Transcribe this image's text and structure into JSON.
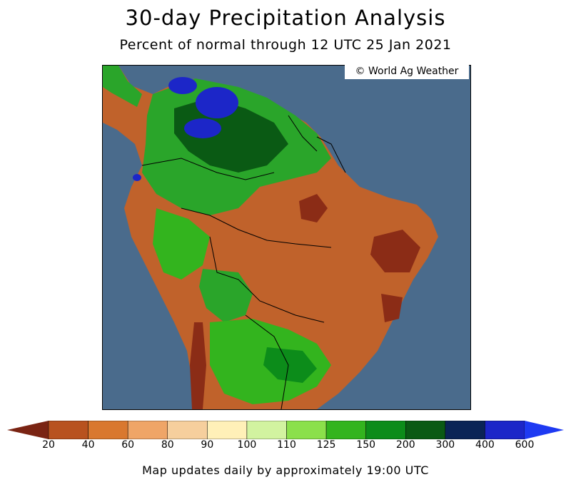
{
  "title": "30-day Precipitation Analysis",
  "subtitle": "Percent of normal through 12 UTC 25 Jan 2021",
  "credit": "© World Ag Weather",
  "footer": "Map updates daily by approximately 19:00 UTC",
  "legend": {
    "bins": [
      {
        "label": "20",
        "color": "#8b2c16"
      },
      {
        "label": "40",
        "color": "#b8521f"
      },
      {
        "label": "60",
        "color": "#d9782f"
      },
      {
        "label": "80",
        "color": "#efa567"
      },
      {
        "label": "90",
        "color": "#f6cf9d"
      },
      {
        "label": "100",
        "color": "#fff0b8"
      },
      {
        "label": "110",
        "color": "#d2f3a0"
      },
      {
        "label": "125",
        "color": "#8be04b"
      },
      {
        "label": "150",
        "color": "#33b41e"
      },
      {
        "label": "200",
        "color": "#0c8c1a"
      },
      {
        "label": "300",
        "color": "#0a5a14"
      },
      {
        "label": "400",
        "color": "#0a2456"
      },
      {
        "label": "600",
        "color": "#1c26c8"
      }
    ],
    "low_end_color": "#7a2413",
    "high_end_color": "#1e3af2"
  },
  "map": {
    "ocean_color": "#4a6b8c",
    "dry_color": "#c0622b",
    "very_dry_color": "#8b2c16",
    "wet_color": "#2aa52a",
    "very_wet_color": "#0a5a14",
    "extreme_wet_color": "#1c26c8"
  }
}
